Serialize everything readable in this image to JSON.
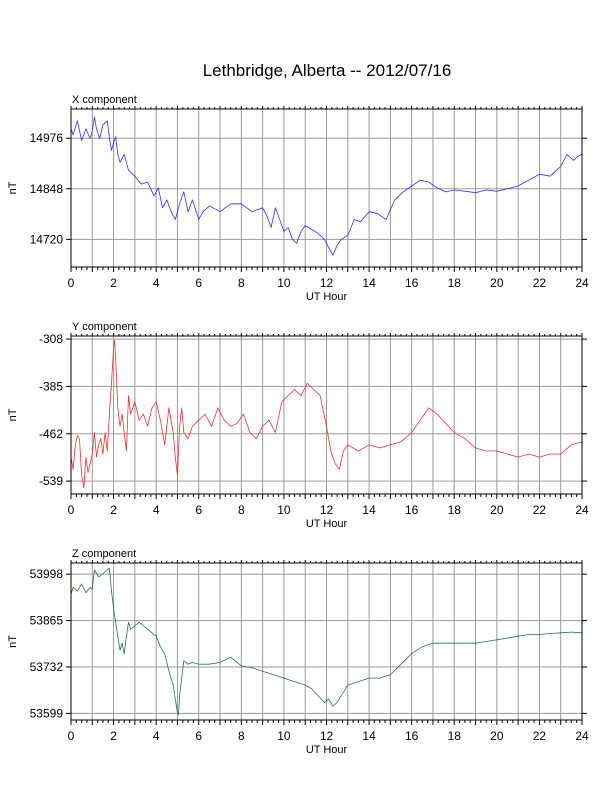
{
  "chart_data": {
    "type": "line",
    "title": "Lethbridge, Alberta -- 2012/07/16",
    "panels": [
      {
        "subtitle": "X component",
        "xlabel": "UT Hour",
        "ylabel": "nT",
        "xlim": [
          0,
          24
        ],
        "ylim": [
          14650,
          15050
        ],
        "xticks": [
          0,
          2,
          4,
          6,
          8,
          10,
          12,
          14,
          16,
          18,
          20,
          22,
          24
        ],
        "yticks": [
          14720,
          14848,
          14976
        ],
        "color": "#3333ee",
        "x": [
          0,
          0.1,
          0.3,
          0.5,
          0.7,
          0.9,
          1.0,
          1.1,
          1.2,
          1.35,
          1.5,
          1.7,
          1.8,
          1.9,
          2.0,
          2.1,
          2.2,
          2.3,
          2.5,
          2.7,
          3.0,
          3.3,
          3.6,
          3.9,
          4.1,
          4.3,
          4.5,
          4.7,
          4.9,
          5.1,
          5.3,
          5.5,
          5.7,
          6.0,
          6.2,
          6.5,
          7.0,
          7.5,
          8.0,
          8.5,
          9.0,
          9.2,
          9.4,
          9.6,
          9.8,
          10.0,
          10.2,
          10.4,
          10.6,
          10.8,
          11.0,
          11.3,
          11.6,
          11.9,
          12.1,
          12.3,
          12.5,
          12.7,
          13.0,
          13.3,
          13.6,
          14.0,
          14.4,
          14.8,
          15.2,
          15.6,
          16.0,
          16.4,
          16.8,
          17.2,
          17.6,
          18.0,
          18.5,
          19.0,
          19.5,
          20.0,
          20.5,
          21.0,
          21.5,
          22.0,
          22.5,
          23.0,
          23.3,
          23.6,
          23.8,
          24.0
        ],
        "y": [
          15000,
          14985,
          15020,
          14970,
          15000,
          14975,
          14995,
          15030,
          15000,
          14975,
          15010,
          15020,
          14980,
          14945,
          14965,
          14980,
          14935,
          14915,
          14935,
          14895,
          14880,
          14860,
          14865,
          14830,
          14850,
          14800,
          14820,
          14790,
          14770,
          14810,
          14840,
          14790,
          14820,
          14770,
          14790,
          14805,
          14790,
          14810,
          14810,
          14790,
          14800,
          14780,
          14750,
          14800,
          14770,
          14740,
          14750,
          14720,
          14710,
          14740,
          14755,
          14745,
          14735,
          14720,
          14700,
          14680,
          14705,
          14720,
          14730,
          14770,
          14765,
          14790,
          14785,
          14770,
          14820,
          14840,
          14855,
          14870,
          14865,
          14850,
          14840,
          14845,
          14842,
          14838,
          14845,
          14842,
          14848,
          14855,
          14870,
          14885,
          14880,
          14905,
          14935,
          14920,
          14930,
          14935
        ]
      },
      {
        "subtitle": "Y component",
        "xlabel": "UT Hour",
        "ylabel": "nT",
        "xlim": [
          0,
          24
        ],
        "ylim": [
          -560,
          -303
        ],
        "xticks": [
          0,
          2,
          4,
          6,
          8,
          10,
          12,
          14,
          16,
          18,
          20,
          22,
          24
        ],
        "yticks": [
          -539,
          -462,
          -385,
          -308
        ],
        "color": "#ee3333",
        "x": [
          0,
          0.1,
          0.2,
          0.3,
          0.4,
          0.5,
          0.6,
          0.7,
          0.8,
          0.9,
          1.0,
          1.1,
          1.2,
          1.3,
          1.4,
          1.5,
          1.6,
          1.7,
          1.8,
          1.9,
          2.0,
          2.05,
          2.1,
          2.2,
          2.3,
          2.4,
          2.5,
          2.6,
          2.7,
          2.8,
          3.0,
          3.2,
          3.4,
          3.6,
          3.8,
          4.0,
          4.2,
          4.4,
          4.6,
          4.8,
          4.9,
          5.0,
          5.1,
          5.2,
          5.3,
          5.5,
          5.7,
          6.0,
          6.3,
          6.6,
          6.9,
          7.2,
          7.5,
          7.8,
          8.1,
          8.4,
          8.7,
          9.0,
          9.3,
          9.6,
          9.9,
          10.2,
          10.5,
          10.8,
          11.1,
          11.4,
          11.7,
          12.0,
          12.2,
          12.4,
          12.6,
          12.8,
          13.0,
          13.5,
          14.0,
          14.5,
          15.0,
          15.5,
          16.0,
          16.4,
          16.8,
          17.2,
          17.6,
          18.0,
          18.5,
          19.0,
          19.5,
          20.0,
          20.5,
          21.0,
          21.5,
          22.0,
          22.5,
          23.0,
          23.5,
          24.0
        ],
        "y": [
          -500,
          -520,
          -480,
          -465,
          -470,
          -530,
          -550,
          -500,
          -525,
          -510,
          -495,
          -460,
          -500,
          -480,
          -470,
          -495,
          -460,
          -490,
          -430,
          -380,
          -320,
          -310,
          -340,
          -420,
          -450,
          -430,
          -460,
          -490,
          -400,
          -430,
          -410,
          -440,
          -430,
          -450,
          -420,
          -410,
          -440,
          -480,
          -420,
          -460,
          -500,
          -530,
          -450,
          -420,
          -460,
          -470,
          -450,
          -440,
          -430,
          -450,
          -420,
          -440,
          -450,
          -445,
          -430,
          -460,
          -470,
          -450,
          -440,
          -460,
          -410,
          -400,
          -390,
          -400,
          -380,
          -390,
          -400,
          -450,
          -490,
          -510,
          -520,
          -490,
          -480,
          -490,
          -480,
          -485,
          -480,
          -475,
          -460,
          -440,
          -420,
          -430,
          -445,
          -460,
          -470,
          -485,
          -490,
          -490,
          -495,
          -500,
          -495,
          -500,
          -495,
          -495,
          -480,
          -475
        ]
      },
      {
        "subtitle": "Z component",
        "xlabel": "UT Hour",
        "ylabel": "nT",
        "xlim": [
          0,
          24
        ],
        "ylim": [
          53580,
          54030
        ],
        "xticks": [
          0,
          2,
          4,
          6,
          8,
          10,
          12,
          14,
          16,
          18,
          20,
          22,
          24
        ],
        "yticks": [
          53599,
          53732,
          53865,
          53998
        ],
        "color": "#227744",
        "x": [
          0,
          0.1,
          0.3,
          0.5,
          0.7,
          0.9,
          1.0,
          1.1,
          1.3,
          1.5,
          1.7,
          1.8,
          1.9,
          2.0,
          2.1,
          2.2,
          2.3,
          2.4,
          2.5,
          2.6,
          2.7,
          2.8,
          3.0,
          3.2,
          3.4,
          3.6,
          3.8,
          4.0,
          4.2,
          4.4,
          4.6,
          4.8,
          4.9,
          5.0,
          5.05,
          5.1,
          5.2,
          5.3,
          5.5,
          5.7,
          6.0,
          6.5,
          7.0,
          7.5,
          8.0,
          8.5,
          9.0,
          9.5,
          10.0,
          10.5,
          11.0,
          11.3,
          11.6,
          11.9,
          12.1,
          12.3,
          12.5,
          12.7,
          13.0,
          13.5,
          14.0,
          14.5,
          15.0,
          15.5,
          16.0,
          16.5,
          17.0,
          17.5,
          18.0,
          18.5,
          19.0,
          19.5,
          20.0,
          20.5,
          21.0,
          21.5,
          22.0,
          22.5,
          23.0,
          23.5,
          24.0
        ],
        "y": [
          53940,
          53960,
          53950,
          53970,
          53945,
          53960,
          53955,
          54010,
          53990,
          54000,
          54010,
          54015,
          53950,
          53900,
          53860,
          53820,
          53780,
          53800,
          53770,
          53820,
          53860,
          53840,
          53850,
          53860,
          53850,
          53840,
          53830,
          53820,
          53790,
          53770,
          53720,
          53680,
          53640,
          53600,
          53595,
          53650,
          53700,
          53750,
          53740,
          53745,
          53740,
          53740,
          53745,
          53760,
          53735,
          53730,
          53720,
          53710,
          53700,
          53690,
          53680,
          53670,
          53650,
          53630,
          53640,
          53620,
          53630,
          53650,
          53680,
          53690,
          53700,
          53700,
          53710,
          53740,
          53770,
          53790,
          53800,
          53800,
          53800,
          53800,
          53800,
          53805,
          53810,
          53815,
          53820,
          53825,
          53825,
          53828,
          53830,
          53832,
          53830
        ]
      }
    ]
  }
}
